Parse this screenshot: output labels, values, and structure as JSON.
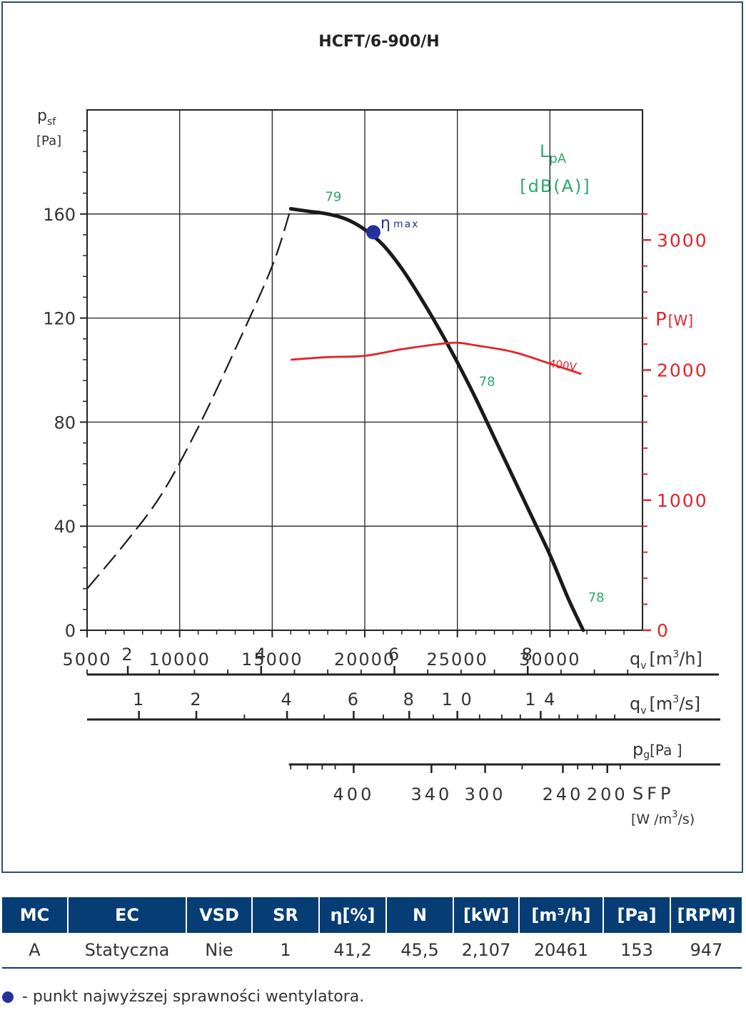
{
  "chart_data": {
    "type": "line",
    "title": "HCFT/6-900/H",
    "y_label": "p",
    "y_label_sub": "sf",
    "y_unit": "[Pa]",
    "y_ticks": [
      "0",
      "40",
      "80",
      "120",
      "160"
    ],
    "ylim": [
      0,
      200
    ],
    "x_ticks": [
      "5000",
      "10000",
      "15000",
      "20000",
      "25000",
      "30000"
    ],
    "xlim": [
      5000,
      35000
    ],
    "x_label": "q",
    "x_label_sub": "v",
    "x_unit": "[m",
    "x_unit_sup": "3",
    "x_unit_end": "/h]",
    "p_label": "P",
    "p_unit": "[W]",
    "p_ticks": [
      "0",
      "1000",
      "2000",
      "3000"
    ],
    "plim": [
      0,
      4000
    ],
    "lpa_label": "L",
    "lpa_sub": "pA",
    "lpa_unit": "[dB(A)]",
    "series": [
      {
        "role": "pressure-unstable",
        "x": [
          5000,
          7000,
          9000,
          11000,
          13000,
          15000,
          16000
        ],
        "y": [
          16,
          33,
          52,
          78,
          108,
          140,
          162
        ]
      },
      {
        "role": "pressure",
        "x": [
          16000,
          17000,
          18000,
          19000,
          20000,
          21000,
          22000,
          23000,
          24000,
          25000,
          26000,
          27000,
          28000,
          29000,
          30000,
          31000,
          31800
        ],
        "y": [
          162,
          161,
          160,
          158,
          154,
          148,
          139,
          128,
          116,
          103,
          89,
          74,
          59,
          44,
          29,
          12,
          0
        ]
      },
      {
        "name": "400V",
        "role": "power",
        "x": [
          16000,
          18000,
          20000,
          22000,
          24000,
          25000,
          26000,
          28000,
          30000,
          31700
        ],
        "y": [
          2080,
          2100,
          2110,
          2160,
          2200,
          2210,
          2190,
          2140,
          2050,
          1970
        ]
      }
    ],
    "efficiency_point": {
      "x": 20461,
      "y": 153,
      "label": "η",
      "label_sub": "max"
    },
    "lpa_labels": [
      {
        "x": 18300,
        "y": 165,
        "text": "79"
      },
      {
        "x": 26600,
        "y": 94,
        "text": "78"
      },
      {
        "x": 32500,
        "y": 11,
        "text": "78"
      }
    ],
    "secondary_axes": [
      {
        "unit": "q",
        "unit_sub": "v",
        "unit_rest": "[m",
        "unit_sup": "3",
        "unit_end": "/s]",
        "labels": [
          {
            "text": "2",
            "x": 7200
          },
          {
            "text": "4",
            "x": 14400
          },
          {
            "text": "6",
            "x": 21600
          },
          {
            "text": "8",
            "x": 28800
          }
        ],
        "major": [
          7200,
          14400,
          21600,
          28800
        ],
        "minor": [
          5000,
          8900,
          10800,
          12600,
          16200,
          18000,
          19800,
          23400,
          25200,
          27000,
          30600,
          32400,
          34200
        ]
      },
      {
        "unit": "p",
        "unit_sub": "g",
        "unit_rest": "[Pa ]",
        "labels": [
          {
            "text": "1",
            "x": 7800
          },
          {
            "text": "2",
            "x": 10900
          },
          {
            "text": "4",
            "x": 15800
          },
          {
            "text": "6",
            "x": 19400
          },
          {
            "text": "8",
            "x": 22400
          },
          {
            "text": "1 0",
            "x": 25000
          },
          {
            "text": "1 4",
            "x": 29500
          }
        ],
        "major": [
          7800,
          10900,
          15800,
          19400,
          22400,
          25000,
          29500
        ],
        "minor": [
          13500,
          17800,
          21000,
          23700,
          26200,
          27400,
          28400,
          30500,
          31500,
          32500,
          33500
        ]
      },
      {
        "unit": "SFP",
        "unit_rest": "[W /m",
        "unit_sup": "3",
        "unit_end": "/s)",
        "labels": [
          {
            "text": "400",
            "x": 19400
          },
          {
            "text": "340",
            "x": 23600
          },
          {
            "text": "300",
            "x": 26500
          },
          {
            "text": "240",
            "x": 30700
          },
          {
            "text": "200",
            "x": 33100
          }
        ],
        "major": [
          19400,
          23600,
          26500,
          30700,
          33100
        ],
        "minor": [
          16000,
          16900,
          17700,
          18400,
          24900,
          28500,
          31500,
          32300,
          33800
        ]
      }
    ]
  },
  "table": {
    "headers": [
      "MC",
      "EC",
      "VSD",
      "SR",
      "η[%]",
      "N",
      "[kW]",
      "[m³/h]",
      "[Pa]",
      "[RPM]"
    ],
    "row": [
      "A",
      "Statyczna",
      "Nie",
      "1",
      "41,2",
      "45,5",
      "2,107",
      "20461",
      "153",
      "947"
    ]
  },
  "footnote": "- punkt najwyższej sprawności wentylatora.",
  "colors": {
    "pressure": "#1a1a1a",
    "power": "#e0252b",
    "lpa": "#2aa86a",
    "eta": "#23329a",
    "header_bg": "#063d75"
  }
}
